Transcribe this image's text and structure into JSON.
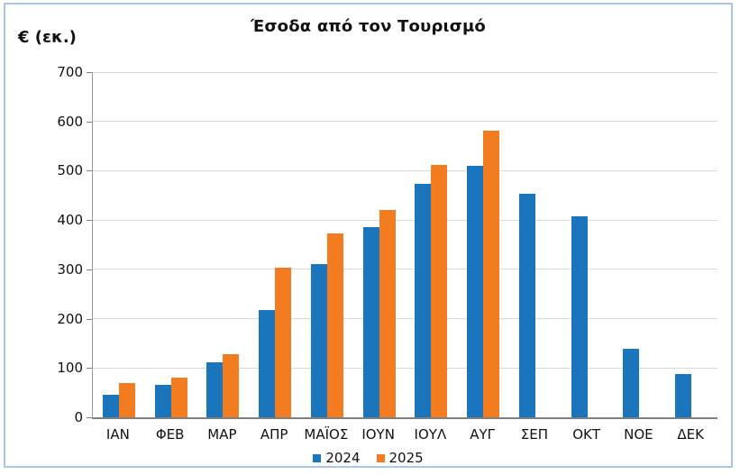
{
  "frame": {
    "border_color": "#aac7e8",
    "background_color": "#ffffff"
  },
  "chart_data": {
    "type": "bar",
    "title": "Έσοδα από τον Τουρισμό",
    "unit_label": "€ (εκ.)",
    "categories": [
      "ΙΑΝ",
      "ΦΕΒ",
      "ΜΑΡ",
      "ΑΠΡ",
      "ΜΑΪΟΣ",
      "ΙΟΥΝ",
      "ΙΟΥΛ",
      "ΑΥΓ",
      "ΣΕΠ",
      "ΟΚΤ",
      "ΝΟΕ",
      "ΔΕΚ"
    ],
    "series": [
      {
        "name": "2024",
        "color": "#1b75bc",
        "values": [
          46,
          65,
          112,
          218,
          311,
          386,
          473,
          510,
          454,
          408,
          139,
          88
        ]
      },
      {
        "name": "2025",
        "color": "#f47c20",
        "values": [
          70,
          80,
          128,
          304,
          373,
          421,
          512,
          581,
          null,
          null,
          null,
          null
        ]
      }
    ],
    "ylim": [
      0,
      700
    ],
    "ytick_step": 100,
    "ytick_labels": [
      "0",
      "100",
      "200",
      "300",
      "400",
      "500",
      "600",
      "700"
    ],
    "grid": true,
    "gridline_color": "#d9d9d9",
    "axis_color": "#808080",
    "legend_position": "bottom-center",
    "legend_entries": [
      "2024",
      "2025"
    ]
  }
}
